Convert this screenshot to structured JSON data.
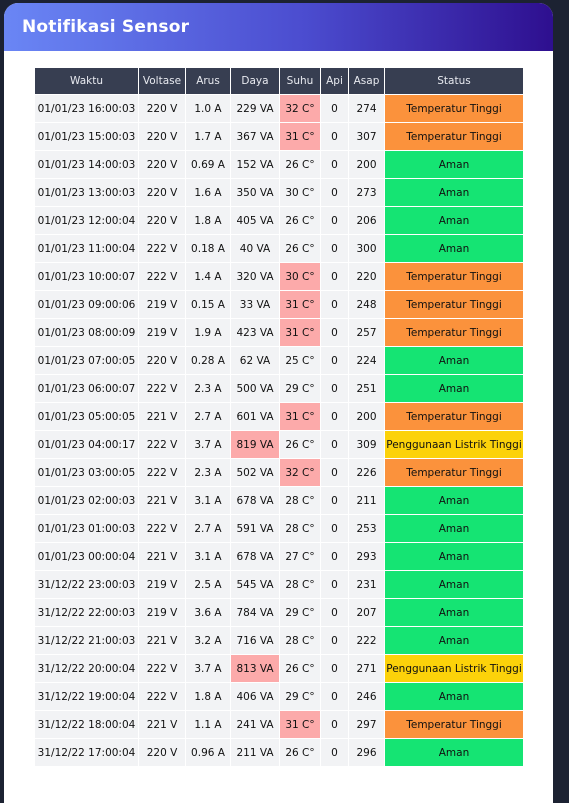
{
  "header": {
    "title": "Notifikasi Sensor"
  },
  "table": {
    "columns": [
      "Waktu",
      "Voltase",
      "Arus",
      "Daya",
      "Suhu",
      "Api",
      "Asap",
      "Status"
    ],
    "rows": [
      {
        "waktu": "01/01/23 16:00:03",
        "voltase": "220 V",
        "arus": "1.0 A",
        "daya": "229 VA",
        "suhu": "32 C°",
        "api": "0",
        "asap": "274",
        "status": "Temperatur Tinggi",
        "hot": "suhu",
        "kind": "temp"
      },
      {
        "waktu": "01/01/23 15:00:03",
        "voltase": "220 V",
        "arus": "1.7 A",
        "daya": "367 VA",
        "suhu": "31 C°",
        "api": "0",
        "asap": "307",
        "status": "Temperatur Tinggi",
        "hot": "suhu",
        "kind": "temp"
      },
      {
        "waktu": "01/01/23 14:00:03",
        "voltase": "220 V",
        "arus": "0.69 A",
        "daya": "152 VA",
        "suhu": "26 C°",
        "api": "0",
        "asap": "200",
        "status": "Aman",
        "hot": "",
        "kind": "ok"
      },
      {
        "waktu": "01/01/23 13:00:03",
        "voltase": "220 V",
        "arus": "1.6 A",
        "daya": "350 VA",
        "suhu": "30 C°",
        "api": "0",
        "asap": "273",
        "status": "Aman",
        "hot": "",
        "kind": "ok"
      },
      {
        "waktu": "01/01/23 12:00:04",
        "voltase": "220 V",
        "arus": "1.8 A",
        "daya": "405 VA",
        "suhu": "26 C°",
        "api": "0",
        "asap": "206",
        "status": "Aman",
        "hot": "",
        "kind": "ok"
      },
      {
        "waktu": "01/01/23 11:00:04",
        "voltase": "222 V",
        "arus": "0.18 A",
        "daya": "40 VA",
        "suhu": "26 C°",
        "api": "0",
        "asap": "300",
        "status": "Aman",
        "hot": "",
        "kind": "ok"
      },
      {
        "waktu": "01/01/23 10:00:07",
        "voltase": "222 V",
        "arus": "1.4 A",
        "daya": "320 VA",
        "suhu": "30 C°",
        "api": "0",
        "asap": "220",
        "status": "Temperatur Tinggi",
        "hot": "suhu",
        "kind": "temp"
      },
      {
        "waktu": "01/01/23 09:00:06",
        "voltase": "219 V",
        "arus": "0.15 A",
        "daya": "33 VA",
        "suhu": "31 C°",
        "api": "0",
        "asap": "248",
        "status": "Temperatur Tinggi",
        "hot": "suhu",
        "kind": "temp"
      },
      {
        "waktu": "01/01/23 08:00:09",
        "voltase": "219 V",
        "arus": "1.9 A",
        "daya": "423 VA",
        "suhu": "31 C°",
        "api": "0",
        "asap": "257",
        "status": "Temperatur Tinggi",
        "hot": "suhu",
        "kind": "temp"
      },
      {
        "waktu": "01/01/23 07:00:05",
        "voltase": "220 V",
        "arus": "0.28 A",
        "daya": "62 VA",
        "suhu": "25 C°",
        "api": "0",
        "asap": "224",
        "status": "Aman",
        "hot": "",
        "kind": "ok"
      },
      {
        "waktu": "01/01/23 06:00:07",
        "voltase": "222 V",
        "arus": "2.3 A",
        "daya": "500 VA",
        "suhu": "29 C°",
        "api": "0",
        "asap": "251",
        "status": "Aman",
        "hot": "",
        "kind": "ok"
      },
      {
        "waktu": "01/01/23 05:00:05",
        "voltase": "221 V",
        "arus": "2.7 A",
        "daya": "601 VA",
        "suhu": "31 C°",
        "api": "0",
        "asap": "200",
        "status": "Temperatur Tinggi",
        "hot": "suhu",
        "kind": "temp"
      },
      {
        "waktu": "01/01/23 04:00:17",
        "voltase": "222 V",
        "arus": "3.7 A",
        "daya": "819 VA",
        "suhu": "26 C°",
        "api": "0",
        "asap": "309",
        "status": "Penggunaan Listrik Tinggi",
        "hot": "daya",
        "kind": "power"
      },
      {
        "waktu": "01/01/23 03:00:05",
        "voltase": "222 V",
        "arus": "2.3 A",
        "daya": "502 VA",
        "suhu": "32 C°",
        "api": "0",
        "asap": "226",
        "status": "Temperatur Tinggi",
        "hot": "suhu",
        "kind": "temp"
      },
      {
        "waktu": "01/01/23 02:00:03",
        "voltase": "221 V",
        "arus": "3.1 A",
        "daya": "678 VA",
        "suhu": "28 C°",
        "api": "0",
        "asap": "211",
        "status": "Aman",
        "hot": "",
        "kind": "ok"
      },
      {
        "waktu": "01/01/23 01:00:03",
        "voltase": "222 V",
        "arus": "2.7 A",
        "daya": "591 VA",
        "suhu": "28 C°",
        "api": "0",
        "asap": "253",
        "status": "Aman",
        "hot": "",
        "kind": "ok"
      },
      {
        "waktu": "01/01/23 00:00:04",
        "voltase": "221 V",
        "arus": "3.1 A",
        "daya": "678 VA",
        "suhu": "27 C°",
        "api": "0",
        "asap": "293",
        "status": "Aman",
        "hot": "",
        "kind": "ok"
      },
      {
        "waktu": "31/12/22 23:00:03",
        "voltase": "219 V",
        "arus": "2.5 A",
        "daya": "545 VA",
        "suhu": "28 C°",
        "api": "0",
        "asap": "231",
        "status": "Aman",
        "hot": "",
        "kind": "ok"
      },
      {
        "waktu": "31/12/22 22:00:03",
        "voltase": "219 V",
        "arus": "3.6 A",
        "daya": "784 VA",
        "suhu": "29 C°",
        "api": "0",
        "asap": "207",
        "status": "Aman",
        "hot": "",
        "kind": "ok"
      },
      {
        "waktu": "31/12/22 21:00:03",
        "voltase": "221 V",
        "arus": "3.2 A",
        "daya": "716 VA",
        "suhu": "28 C°",
        "api": "0",
        "asap": "222",
        "status": "Aman",
        "hot": "",
        "kind": "ok"
      },
      {
        "waktu": "31/12/22 20:00:04",
        "voltase": "222 V",
        "arus": "3.7 A",
        "daya": "813 VA",
        "suhu": "26 C°",
        "api": "0",
        "asap": "271",
        "status": "Penggunaan Listrik Tinggi",
        "hot": "daya",
        "kind": "power"
      },
      {
        "waktu": "31/12/22 19:00:04",
        "voltase": "222 V",
        "arus": "1.8 A",
        "daya": "406 VA",
        "suhu": "29 C°",
        "api": "0",
        "asap": "246",
        "status": "Aman",
        "hot": "",
        "kind": "ok"
      },
      {
        "waktu": "31/12/22 18:00:04",
        "voltase": "221 V",
        "arus": "1.1 A",
        "daya": "241 VA",
        "suhu": "31 C°",
        "api": "0",
        "asap": "297",
        "status": "Temperatur Tinggi",
        "hot": "suhu",
        "kind": "temp"
      },
      {
        "waktu": "31/12/22 17:00:04",
        "voltase": "220 V",
        "arus": "0.96 A",
        "daya": "211 VA",
        "suhu": "26 C°",
        "api": "0",
        "asap": "296",
        "status": "Aman",
        "hot": "",
        "kind": "ok"
      }
    ]
  }
}
